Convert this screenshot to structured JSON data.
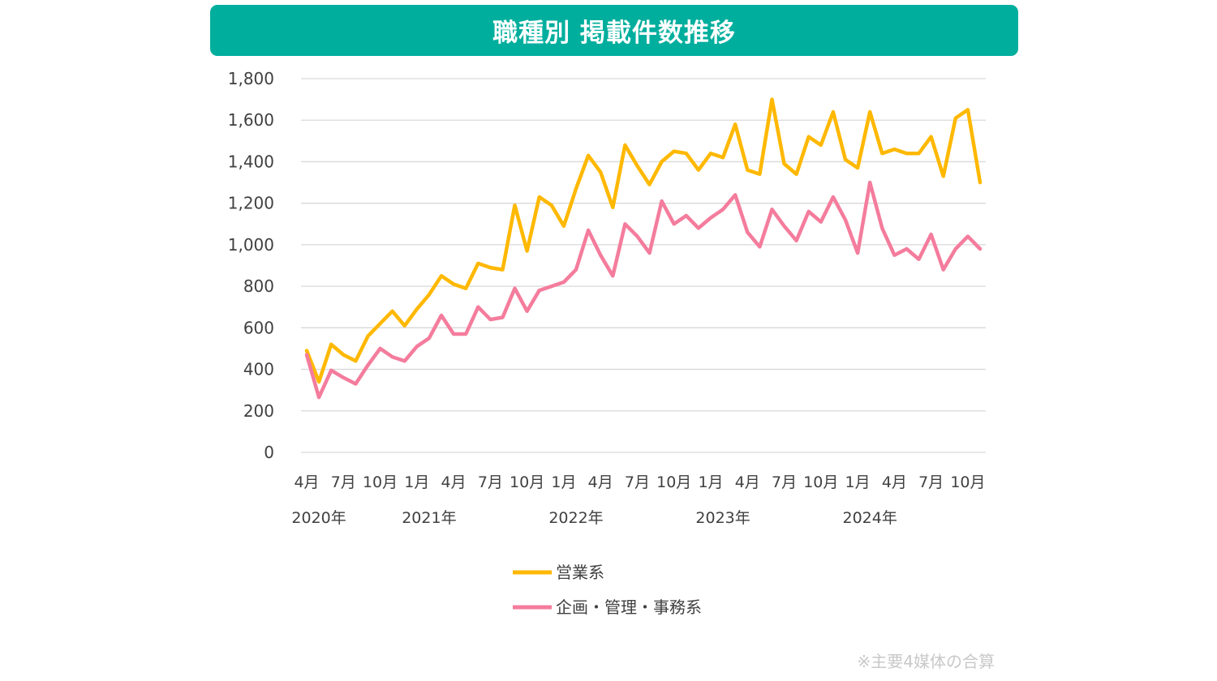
{
  "chart_data": {
    "type": "line",
    "title": "職種別 掲載件数推移",
    "ylim": [
      0,
      1800
    ],
    "yticks": [
      "0",
      "200",
      "400",
      "600",
      "800",
      "1,000",
      "1,200",
      "1,400",
      "1,600",
      "1,800"
    ],
    "grid": true,
    "month_ticks": [
      {
        "label": "4月",
        "index": 0
      },
      {
        "label": "7月",
        "index": 3
      },
      {
        "label": "10月",
        "index": 6
      },
      {
        "label": "1月",
        "index": 9
      },
      {
        "label": "4月",
        "index": 12
      },
      {
        "label": "7月",
        "index": 15
      },
      {
        "label": "10月",
        "index": 18
      },
      {
        "label": "1月",
        "index": 21
      },
      {
        "label": "4月",
        "index": 24
      },
      {
        "label": "7月",
        "index": 27
      },
      {
        "label": "10月",
        "index": 30
      },
      {
        "label": "1月",
        "index": 33
      },
      {
        "label": "4月",
        "index": 36
      },
      {
        "label": "7月",
        "index": 39
      },
      {
        "label": "10月",
        "index": 42
      },
      {
        "label": "1月",
        "index": 45
      },
      {
        "label": "4月",
        "index": 48
      },
      {
        "label": "7月",
        "index": 51
      },
      {
        "label": "10月",
        "index": 54
      }
    ],
    "year_labels": [
      {
        "label": "2020年",
        "index": 1
      },
      {
        "label": "2021年",
        "index": 10
      },
      {
        "label": "2022年",
        "index": 22
      },
      {
        "label": "2023年",
        "index": 34
      },
      {
        "label": "2024年",
        "index": 46
      }
    ],
    "x_start": "2020-04",
    "legend_position": "bottom",
    "series": [
      {
        "name": "営業系",
        "color": "#ffb800",
        "values": [
          490,
          340,
          520,
          470,
          440,
          560,
          620,
          680,
          610,
          690,
          760,
          850,
          810,
          790,
          910,
          890,
          880,
          1190,
          970,
          1230,
          1190,
          1090,
          1270,
          1430,
          1350,
          1180,
          1480,
          1380,
          1290,
          1400,
          1450,
          1440,
          1360,
          1440,
          1420,
          1580,
          1360,
          1340,
          1700,
          1390,
          1340,
          1520,
          1480,
          1640,
          1410,
          1370,
          1640,
          1440,
          1460,
          1440,
          1440,
          1520,
          1330,
          1610,
          1650,
          1300
        ]
      },
      {
        "name": "企画・管理・事務系",
        "color": "#f47c9c",
        "values": [
          470,
          265,
          395,
          360,
          330,
          420,
          500,
          460,
          440,
          510,
          550,
          660,
          570,
          570,
          700,
          640,
          650,
          790,
          680,
          780,
          800,
          820,
          880,
          1070,
          950,
          850,
          1100,
          1040,
          960,
          1210,
          1100,
          1140,
          1080,
          1130,
          1170,
          1240,
          1060,
          990,
          1170,
          1090,
          1020,
          1160,
          1110,
          1230,
          1120,
          960,
          1300,
          1080,
          950,
          980,
          930,
          1050,
          880,
          980,
          1040,
          980
        ]
      }
    ]
  },
  "note": "※主要4媒体の合算"
}
